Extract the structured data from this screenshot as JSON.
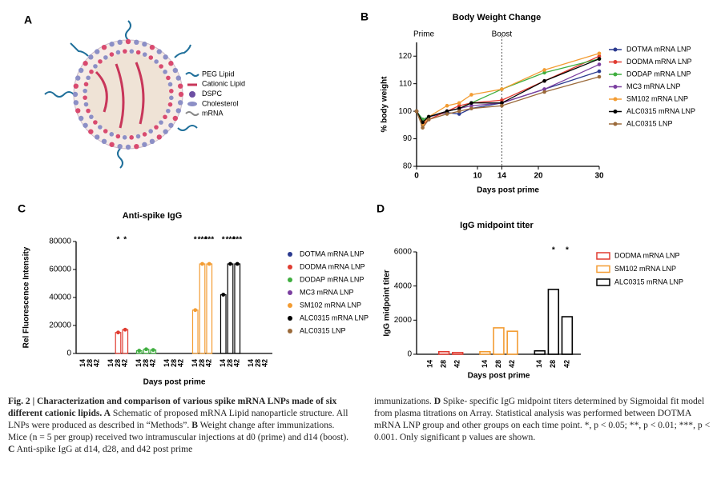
{
  "panel_a": {
    "label": "A",
    "legend": [
      "PEG Lipid",
      "Cationic Lipid",
      "DSPC",
      "Cholesterol",
      "mRNA"
    ]
  },
  "chart_data": [
    {
      "type": "line",
      "panel": "B",
      "title": "Body Weight Change",
      "ylabel": "% body weight",
      "xlabel": "Days post prime",
      "annotations": [
        "Prime",
        "Boost"
      ],
      "boost_day": 14,
      "x": [
        0,
        1,
        2,
        5,
        7,
        9,
        14,
        21,
        30
      ],
      "xlim": [
        0,
        30
      ],
      "xticks": [
        0,
        10,
        14,
        20,
        30
      ],
      "ylim": [
        80,
        125
      ],
      "yticks": [
        80,
        90,
        100,
        110,
        120
      ],
      "series": [
        {
          "name": "DOTMA mRNA LNP",
          "color": "#2b3a8f",
          "values": [
            100,
            97,
            98,
            99.5,
            99,
            101,
            103,
            108,
            114.5
          ]
        },
        {
          "name": "DODMA mRNA LNP",
          "color": "#e03c31",
          "values": [
            100,
            95,
            97,
            100,
            102,
            103,
            104,
            111,
            120
          ]
        },
        {
          "name": "DODAP mRNA LNP",
          "color": "#3fae3f",
          "values": [
            100,
            97,
            98,
            100,
            101,
            103,
            108,
            114,
            119
          ]
        },
        {
          "name": "MC3 mRNA LNP",
          "color": "#7b3fa0",
          "values": [
            100,
            96,
            98,
            100,
            101,
            102,
            103,
            108,
            117
          ]
        },
        {
          "name": "SM102 mRNA LNP",
          "color": "#f39c32",
          "values": [
            100,
            95,
            98,
            102,
            103,
            106,
            108,
            115,
            121
          ]
        },
        {
          "name": "ALC0315 mRNA LNP",
          "color": "#000000",
          "values": [
            100,
            96,
            98,
            100,
            101,
            103,
            103,
            111,
            119
          ]
        },
        {
          "name": "ALC0315 LNP",
          "color": "#9b6a3a",
          "values": [
            100,
            94,
            97,
            99,
            100,
            101,
            102,
            107,
            112.5
          ]
        }
      ]
    },
    {
      "type": "bar",
      "panel": "C",
      "title": "Anti-spike IgG",
      "ylabel": "Rel Fluorescence Intensity",
      "xlabel": "Days post prime",
      "categories": [
        "14",
        "28",
        "42"
      ],
      "ylim": [
        0,
        80000
      ],
      "yticks": [
        0,
        20000,
        40000,
        60000,
        80000
      ],
      "style": "filled",
      "series": [
        {
          "name": "DOTMA mRNA LNP",
          "color": "#2b3a8f",
          "values": [
            0,
            0,
            0
          ],
          "stars": [
            null,
            null,
            null
          ]
        },
        {
          "name": "DODMA mRNA LNP",
          "color": "#e03c31",
          "values": [
            0,
            15000,
            17000
          ],
          "stars": [
            null,
            "*",
            "*"
          ]
        },
        {
          "name": "DODAP mRNA LNP",
          "color": "#3fae3f",
          "values": [
            2000,
            3000,
            2500
          ],
          "stars": [
            null,
            null,
            null
          ]
        },
        {
          "name": "MC3 mRNA LNP",
          "color": "#7b3fa0",
          "values": [
            0,
            0,
            0
          ],
          "stars": [
            null,
            null,
            null
          ]
        },
        {
          "name": "SM102 mRNA LNP",
          "color": "#f39c32",
          "values": [
            31000,
            64000,
            64000
          ],
          "stars": [
            "*",
            "***",
            "***"
          ]
        },
        {
          "name": "ALC0315 mRNA LNP",
          "color": "#000000",
          "values": [
            42000,
            64000,
            64000
          ],
          "stars": [
            "*",
            "***",
            "***"
          ]
        },
        {
          "name": "ALC0315 LNP",
          "color": "#9b6a3a",
          "values": [
            0,
            0,
            0
          ],
          "stars": [
            null,
            null,
            null
          ]
        }
      ]
    },
    {
      "type": "bar",
      "panel": "D",
      "title": "IgG midpoint titer",
      "ylabel": "IgG midpoint titer",
      "xlabel": "Days post prime",
      "categories": [
        "14",
        "28",
        "42"
      ],
      "ylim": [
        0,
        6000
      ],
      "yticks": [
        0,
        2000,
        4000,
        6000
      ],
      "style": "outline",
      "series": [
        {
          "name": "DODMA mRNA LNP",
          "color": "#e03c31",
          "values": [
            0,
            150,
            100
          ],
          "stars": [
            null,
            null,
            null
          ]
        },
        {
          "name": "SM102 mRNA LNP",
          "color": "#f39c32",
          "values": [
            150,
            1550,
            1350
          ],
          "stars": [
            null,
            null,
            null
          ]
        },
        {
          "name": "ALC0315 mRNA LNP",
          "color": "#000000",
          "values": [
            200,
            3800,
            2200
          ],
          "stars": [
            null,
            "*",
            "*"
          ]
        }
      ]
    }
  ],
  "caption": {
    "left": [
      {
        "text": "Fig. 2 | Characterization and comparison of various spike mRNA LNPs made of six different cationic lipids. A",
        "bold": true
      },
      {
        "text": " Schematic of proposed mRNA Lipid nanoparticle structure. All LNPs were produced as described in “Methods”. ",
        "bold": false
      },
      {
        "text": "B",
        "bold": true
      },
      {
        "text": " Weight change after immunizations. Mice (n = 5 per group) received two intramuscular injections at d0 (prime) and d14 (boost). ",
        "bold": false
      },
      {
        "text": "C",
        "bold": true
      },
      {
        "text": " Anti-spike IgG at d14, d28, and d42 post prime",
        "bold": false
      }
    ],
    "right": [
      {
        "text": "immunizations. ",
        "bold": false
      },
      {
        "text": "D",
        "bold": true
      },
      {
        "text": " Spike- specific IgG midpoint titers determined by Sigmoidal fit model from plasma titrations on Array. Statistical analysis was performed between DOTMA mRNA LNP group and other groups on each time point. *, p < 0.05; **, p < 0.01; ***, p < 0.001. Only significant p values are shown.",
        "bold": false
      }
    ]
  }
}
